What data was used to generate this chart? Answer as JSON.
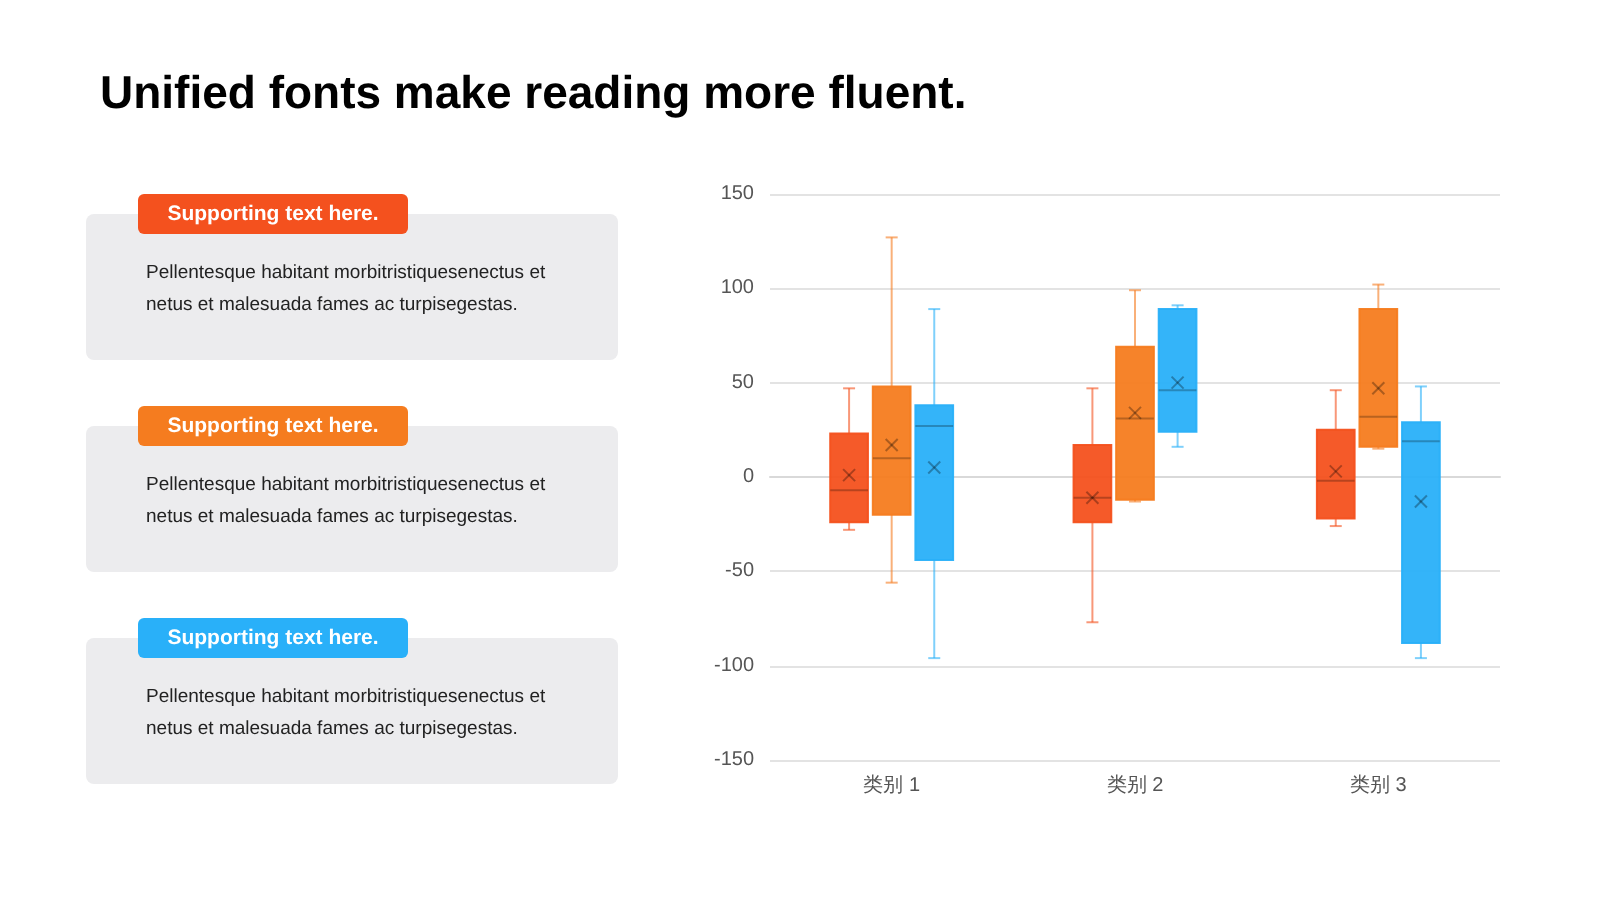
{
  "chart_data": [
    {
      "type": "other",
      "title": "Unified fonts make reading more fluent."
    },
    {
      "type": "other",
      "title": "Supporting text here.",
      "color": "#f4511e",
      "annotations": [
        "Pellentesque habitant morbitristiquesenectus et netus et malesuada fames ac turpisegestas."
      ]
    },
    {
      "type": "other",
      "title": "Supporting text here.",
      "color": "#f57c1f",
      "annotations": [
        "Pellentesque habitant morbitristiquesenectus et netus et malesuada fames ac turpisegestas."
      ]
    },
    {
      "type": "other",
      "title": "Supporting text here.",
      "color": "#29b0f9",
      "annotations": [
        "Pellentesque habitant morbitristiquesenectus et netus et malesuada fames ac turpisegestas."
      ]
    },
    {
      "type": "box",
      "categories": [
        "类别 1",
        "类别 2",
        "类别 3"
      ],
      "ylim": [
        -150,
        150
      ],
      "yticks": [
        -150,
        -100,
        -50,
        0,
        50,
        100,
        150
      ],
      "grid": "y",
      "series": [
        {
          "color": "#f4511e",
          "boxes": [
            {
              "low": -28,
              "q1": -24,
              "median": -7,
              "q3": 23,
              "high": 47,
              "mean": 1
            },
            {
              "low": -77,
              "q1": -24,
              "median": -11,
              "q3": 17,
              "high": 47,
              "mean": -11
            },
            {
              "low": -26,
              "q1": -22,
              "median": -2,
              "q3": 25,
              "high": 46,
              "mean": 3
            }
          ]
        },
        {
          "color": "#f57c1f",
          "boxes": [
            {
              "low": -56,
              "q1": -20,
              "median": 10,
              "q3": 48,
              "high": 127,
              "mean": 17
            },
            {
              "low": -13,
              "q1": -12,
              "median": 31,
              "q3": 69,
              "high": 99,
              "mean": 34
            },
            {
              "low": 15,
              "q1": 16,
              "median": 32,
              "q3": 89,
              "high": 102,
              "mean": 47
            }
          ]
        },
        {
          "color": "#29b0f9",
          "boxes": [
            {
              "low": -96,
              "q1": -44,
              "median": 27,
              "q3": 38,
              "high": 89,
              "mean": 5
            },
            {
              "low": 16,
              "q1": 24,
              "median": 46,
              "q3": 89,
              "high": 91,
              "mean": 50
            },
            {
              "low": -96,
              "q1": -88,
              "median": 19,
              "q3": 29,
              "high": 48,
              "mean": -13
            }
          ]
        }
      ]
    }
  ]
}
